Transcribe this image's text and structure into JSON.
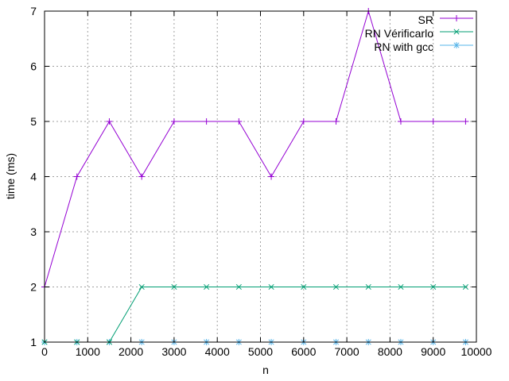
{
  "chart_data": {
    "type": "line",
    "title": "",
    "xlabel": "n",
    "ylabel": "time (ms)",
    "xlim": [
      0,
      10000
    ],
    "ylim": [
      1,
      7
    ],
    "xticks": [
      0,
      1000,
      2000,
      3000,
      4000,
      5000,
      6000,
      7000,
      8000,
      9000,
      10000
    ],
    "yticks": [
      1,
      2,
      3,
      4,
      5,
      6,
      7
    ],
    "xtick_labels": [
      "0",
      "1000",
      "2000",
      "3000",
      "4000",
      "5000",
      "6000",
      "7000",
      "8000",
      "9000",
      "10000"
    ],
    "ytick_labels": [
      "1",
      "2",
      "3",
      "4",
      "5",
      "6",
      "7"
    ],
    "grid": true,
    "legend_position": "top-right",
    "x": [
      0,
      750,
      1500,
      2250,
      3000,
      3750,
      4500,
      5250,
      6000,
      6750,
      7500,
      8250,
      9000,
      9750
    ],
    "series": [
      {
        "name": "SR",
        "color": "#9400d3",
        "marker": "plus",
        "values": [
          2,
          4,
          5,
          4,
          5,
          5,
          5,
          4,
          5,
          5,
          7,
          5,
          5,
          5
        ]
      },
      {
        "name": "RN Vérificarlo",
        "color": "#009e73",
        "marker": "cross",
        "values": [
          1,
          1,
          1,
          2,
          2,
          2,
          2,
          2,
          2,
          2,
          2,
          2,
          2,
          2
        ]
      },
      {
        "name": "RN with gcc",
        "color": "#56b4e9",
        "marker": "star",
        "values": [
          1,
          1,
          1,
          1,
          1,
          1,
          1,
          1,
          1,
          1,
          1,
          1,
          1,
          1
        ]
      }
    ]
  }
}
